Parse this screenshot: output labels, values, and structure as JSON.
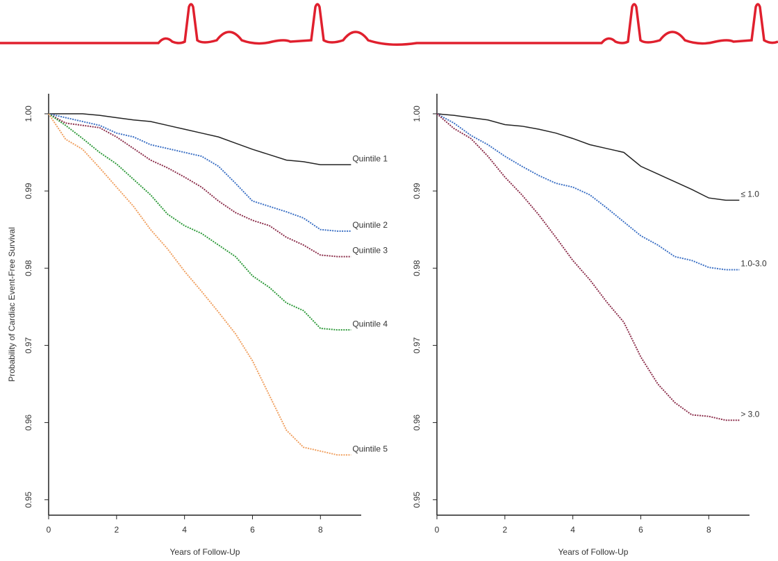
{
  "chart_data": [
    {
      "type": "line",
      "y_label": "Probability of Cardiac Event-Free Survival",
      "x_label": "Years of Follow-Up",
      "xlim": [
        0,
        9.2
      ],
      "xticks": [
        0,
        2,
        4,
        6,
        8
      ],
      "ylim": [
        0.948,
        1.0026
      ],
      "yticks": [
        0.95,
        0.96,
        0.97,
        0.98,
        0.99,
        {
          "value": 1,
          "label": "1.00"
        }
      ],
      "x": [
        0,
        0.5,
        1,
        1.5,
        2,
        2.5,
        3,
        3.5,
        4,
        4.5,
        5,
        5.5,
        6,
        6.5,
        7,
        7.5,
        8,
        8.5,
        8.9
      ],
      "series": [
        {
          "name": "Quintile 1",
          "color": "#222222",
          "values": [
            1,
            1,
            1,
            0.9998,
            0.9995,
            0.9992,
            0.999,
            0.9985,
            0.998,
            0.9975,
            0.997,
            0.9962,
            0.9954,
            0.9947,
            0.994,
            0.9938,
            0.9934,
            0.9934,
            0.9934
          ]
        },
        {
          "name": "Quintile 2",
          "color": "#3a6fc4",
          "values": [
            1,
            0.9995,
            0.999,
            0.9985,
            0.9975,
            0.997,
            0.996,
            0.9955,
            0.995,
            0.9945,
            0.9932,
            0.991,
            0.9887,
            0.988,
            0.9873,
            0.9865,
            0.985,
            0.9848,
            0.9848
          ]
        },
        {
          "name": "Quintile 3",
          "color": "#8b2d4a",
          "values": [
            1,
            0.9988,
            0.9985,
            0.9982,
            0.997,
            0.9955,
            0.994,
            0.993,
            0.9918,
            0.9905,
            0.9887,
            0.9872,
            0.9862,
            0.9855,
            0.984,
            0.983,
            0.9817,
            0.9815,
            0.9815
          ]
        },
        {
          "name": "Quintile 4",
          "color": "#2e9a3a",
          "values": [
            1,
            0.9985,
            0.9968,
            0.995,
            0.9935,
            0.9915,
            0.9895,
            0.987,
            0.9855,
            0.9845,
            0.983,
            0.9815,
            0.979,
            0.9775,
            0.9755,
            0.9745,
            0.9722,
            0.972,
            0.972
          ]
        },
        {
          "name": "Quintile 5",
          "color": "#f0a060",
          "values": [
            1,
            0.9967,
            0.9954,
            0.993,
            0.9905,
            0.988,
            0.985,
            0.9825,
            0.9796,
            0.977,
            0.9743,
            0.9715,
            0.968,
            0.9635,
            0.959,
            0.9568,
            0.9563,
            0.9558,
            0.9558
          ]
        }
      ]
    },
    {
      "type": "line",
      "x_label": "Years of Follow-Up",
      "xlim": [
        0,
        9.2
      ],
      "xticks": [
        0,
        2,
        4,
        6,
        8
      ],
      "ylim": [
        0.948,
        1.0026
      ],
      "yticks": [
        0.95,
        0.96,
        0.97,
        0.98,
        0.99,
        {
          "value": 1,
          "label": "1.00"
        }
      ],
      "x": [
        0,
        0.5,
        1,
        1.5,
        2,
        2.5,
        3,
        3.5,
        4,
        4.5,
        5,
        5.5,
        6,
        6.5,
        7,
        7.5,
        8,
        8.5,
        8.9
      ],
      "series": [
        {
          "name": "≤ 1.0",
          "color": "#222222",
          "values": [
            1,
            0.9998,
            0.9995,
            0.9992,
            0.9986,
            0.9984,
            0.998,
            0.9975,
            0.9968,
            0.996,
            0.9955,
            0.995,
            0.9932,
            0.9922,
            0.9912,
            0.9902,
            0.9891,
            0.9888,
            0.9888
          ]
        },
        {
          "name": "1.0-3.0",
          "color": "#3a6fc4",
          "values": [
            1,
            0.9988,
            0.9972,
            0.996,
            0.9945,
            0.9932,
            0.992,
            0.991,
            0.9905,
            0.9895,
            0.9878,
            0.986,
            0.9842,
            0.983,
            0.9815,
            0.981,
            0.9801,
            0.9798,
            0.9798
          ]
        },
        {
          "name": "> 3.0",
          "color": "#8b2d4a",
          "values": [
            1,
            0.9981,
            0.9968,
            0.9945,
            0.9918,
            0.9895,
            0.9869,
            0.984,
            0.981,
            0.9785,
            0.9756,
            0.973,
            0.9685,
            0.965,
            0.9626,
            0.961,
            0.9608,
            0.9603,
            0.9603
          ]
        }
      ]
    }
  ]
}
